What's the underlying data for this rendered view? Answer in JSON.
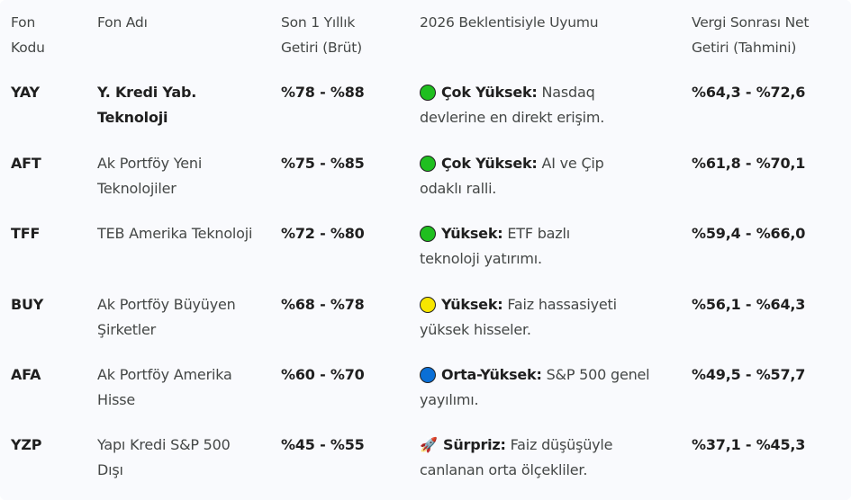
{
  "headers": [
    "Fon Kodu",
    "Fon Adı",
    "Son 1 Yıllık Getiri (Brüt)",
    "2026 Beklentisiyle Uyumu",
    "Vergi Sonrası Net Getiri (Tahmini)"
  ],
  "rows": [
    {
      "code": "YAY",
      "name": "Y. Kredi Yab. Teknoloji",
      "name_bold": true,
      "gross": "%78 - %88",
      "icon": "green-circle-icon",
      "icon_color": "#1fbf1f",
      "level": "Çok Yüksek:",
      "desc": " Nasdaq devlerine en direkt erişim.",
      "net": "%64,3 - %72,6"
    },
    {
      "code": "AFT",
      "name": "Ak Portföy Yeni Teknolojiler",
      "name_bold": false,
      "gross": "%75 - %85",
      "icon": "green-circle-icon",
      "icon_color": "#1fbf1f",
      "level": "Çok Yüksek:",
      "desc": " AI ve Çip odaklı ralli.",
      "net": "%61,8 - %70,1"
    },
    {
      "code": "TFF",
      "name": "TEB Amerika Teknoloji",
      "name_bold": false,
      "gross": "%72 - %80",
      "icon": "green-circle-icon",
      "icon_color": "#1fbf1f",
      "level": "Yüksek:",
      "desc": " ETF bazlı teknoloji yatırımı.",
      "net": "%59,4 - %66,0"
    },
    {
      "code": "BUY",
      "name": "Ak Portföy Büyüyen Şirketler",
      "name_bold": false,
      "gross": "%68 - %78",
      "icon": "yellow-circle-icon",
      "icon_color": "#f7e600",
      "level": "Yüksek:",
      "desc": " Faiz hassasiyeti yüksek hisseler.",
      "net": "%56,1 - %64,3"
    },
    {
      "code": "AFA",
      "name": "Ak Portföy Amerika Hisse",
      "name_bold": false,
      "gross": "%60 - %70",
      "icon": "blue-circle-icon",
      "icon_color": "#0a6fd6",
      "level": "Orta-Yüksek:",
      "desc": " S&P 500 genel yayılımı.",
      "net": "%49,5 - %57,7"
    },
    {
      "code": "YZP",
      "name": "Yapı Kredi S&P 500 Dışı",
      "name_bold": false,
      "gross": "%45 - %55",
      "icon": "rocket-icon",
      "icon_color": "",
      "level": "Sürpriz:",
      "desc": " Faiz düşüşüyle canlanan orta ölçekliler.",
      "net": "%37,1 - %45,3"
    }
  ]
}
